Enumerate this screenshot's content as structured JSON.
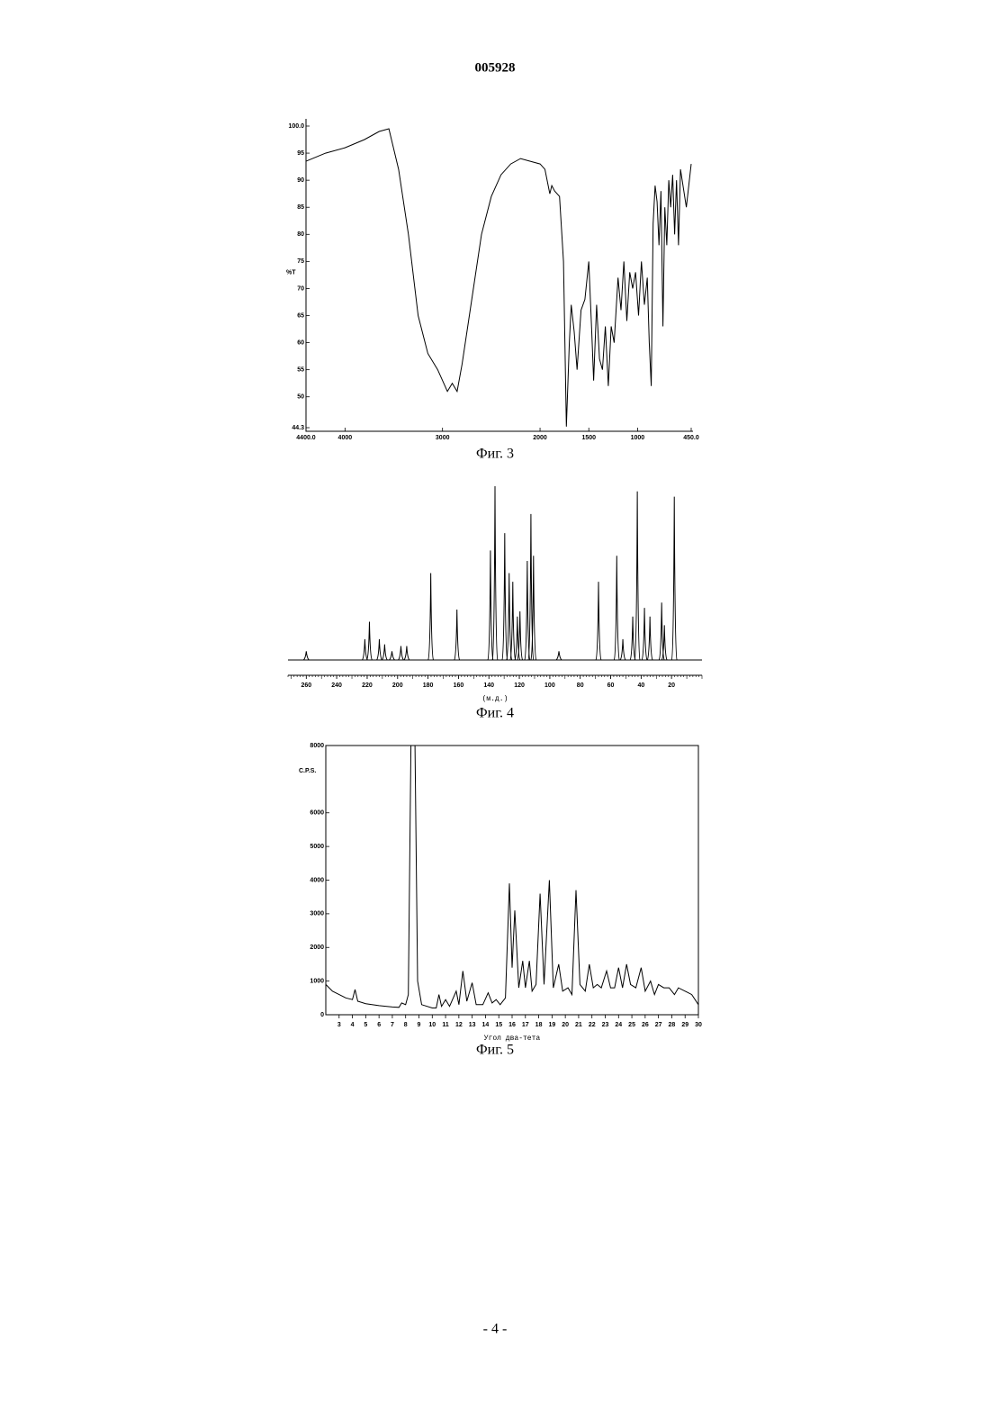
{
  "header": "005928",
  "footer": "- 4 -",
  "chart_data": [
    {
      "type": "line",
      "caption": "Фиг. 3",
      "ylabel": "%T",
      "color": "#000000",
      "xlim": [
        4400,
        450
      ],
      "xticks": [
        {
          "value": 4400,
          "label": "4400.0"
        },
        4000,
        3000,
        2000,
        1500,
        1000,
        {
          "value": 450,
          "label": "450.0"
        }
      ],
      "ylim": [
        44.3,
        100
      ],
      "yticks": [
        {
          "value": 100,
          "label": "100.0"
        },
        95,
        90,
        85,
        80,
        75,
        70,
        65,
        60,
        55,
        50,
        {
          "value": 44.3,
          "label": "44.3"
        }
      ],
      "x": [
        4400,
        4200,
        4000,
        3800,
        3650,
        3550,
        3450,
        3350,
        3250,
        3150,
        3050,
        2950,
        2900,
        2850,
        2800,
        2700,
        2600,
        2500,
        2400,
        2300,
        2200,
        2100,
        2000,
        1950,
        1900,
        1880,
        1850,
        1800,
        1760,
        1730,
        1700,
        1680,
        1650,
        1620,
        1580,
        1540,
        1500,
        1470,
        1450,
        1420,
        1390,
        1360,
        1330,
        1300,
        1270,
        1240,
        1200,
        1170,
        1140,
        1110,
        1080,
        1050,
        1020,
        990,
        960,
        930,
        900,
        880,
        860,
        840,
        820,
        800,
        780,
        760,
        740,
        720,
        700,
        680,
        660,
        640,
        620,
        600,
        580,
        560,
        500,
        450
      ],
      "values": [
        93.5,
        95,
        96,
        97.5,
        99,
        99.5,
        92,
        80,
        65,
        58,
        55,
        51,
        52.5,
        51,
        56,
        68,
        80,
        87,
        91,
        93,
        94,
        93.5,
        93,
        92,
        87.5,
        89,
        88,
        87,
        75,
        44.5,
        60,
        67,
        62,
        55,
        66,
        68,
        75,
        62,
        53,
        67,
        57,
        55,
        63,
        52,
        63,
        60,
        72,
        66,
        75,
        64,
        73,
        70,
        73,
        65,
        75,
        67,
        72,
        60,
        52,
        82,
        89,
        86,
        78,
        88,
        63,
        85,
        78,
        90,
        85,
        91,
        80,
        90,
        78,
        92,
        85,
        93
      ]
    },
    {
      "type": "spectrum",
      "caption": "Фиг. 4",
      "xlabel": "(м.д.)",
      "color": "#000000",
      "xlim": [
        272,
        0
      ],
      "xticks": [
        260,
        240,
        220,
        200,
        180,
        160,
        140,
        120,
        100,
        80,
        60,
        40,
        20
      ],
      "ylim": [
        0,
        100
      ],
      "x": [
        260,
        221.5,
        218.5,
        212,
        208.5,
        203.7,
        197.8,
        194,
        178.2,
        161,
        139,
        136,
        129.6,
        126.7,
        124.3,
        121.3,
        119.6,
        114.8,
        112.4,
        110.7,
        94,
        68,
        56,
        52,
        45.5,
        42.5,
        37.8,
        34.2,
        26.5,
        24.7,
        18.2
      ],
      "values": [
        5,
        12,
        22,
        12,
        9,
        5,
        8,
        8,
        50,
        29,
        63,
        100,
        73,
        50,
        45,
        25,
        28,
        57,
        84,
        60,
        5,
        45,
        60,
        12,
        25,
        97,
        30,
        25,
        33,
        20,
        94
      ]
    },
    {
      "type": "line",
      "caption": "Фиг. 5",
      "xlabel": "Угол два-тета",
      "ylabel": "C.P.S.",
      "color": "#000000",
      "xlim": [
        2,
        30
      ],
      "xticks": [
        3,
        4,
        5,
        6,
        7,
        8,
        9,
        10,
        11,
        12,
        13,
        14,
        15,
        16,
        17,
        18,
        19,
        20,
        21,
        22,
        23,
        24,
        25,
        26,
        27,
        28,
        29,
        30
      ],
      "ylim": [
        0,
        8000
      ],
      "yticks": [
        0,
        1000,
        2000,
        3000,
        4000,
        5000,
        6000,
        8000
      ],
      "x": [
        2,
        2.5,
        3,
        3.5,
        4,
        4.2,
        4.4,
        5,
        6,
        7,
        7.5,
        7.7,
        8,
        8.2,
        8.4,
        8.7,
        8.9,
        9.2,
        10,
        10.3,
        10.5,
        10.7,
        11,
        11.3,
        11.8,
        12,
        12.3,
        12.6,
        13,
        13.3,
        13.8,
        14.2,
        14.5,
        14.8,
        15.1,
        15.5,
        15.8,
        16,
        16.2,
        16.5,
        16.8,
        17,
        17.3,
        17.5,
        17.8,
        18.1,
        18.4,
        18.8,
        19.1,
        19.5,
        19.8,
        20.2,
        20.5,
        20.8,
        21.1,
        21.5,
        21.8,
        22.1,
        22.4,
        22.7,
        23.1,
        23.4,
        23.7,
        24,
        24.3,
        24.6,
        24.9,
        25.3,
        25.7,
        26,
        26.4,
        26.7,
        27,
        27.4,
        27.8,
        28.2,
        28.5,
        29,
        29.5,
        30
      ],
      "values": [
        900,
        700,
        600,
        500,
        450,
        750,
        400,
        330,
        270,
        230,
        220,
        350,
        300,
        600,
        8000,
        8000,
        1000,
        300,
        200,
        200,
        600,
        250,
        450,
        250,
        700,
        300,
        1300,
        400,
        950,
        300,
        300,
        650,
        350,
        450,
        300,
        500,
        3900,
        1400,
        3100,
        800,
        1600,
        800,
        1600,
        700,
        900,
        3600,
        900,
        4000,
        800,
        1500,
        700,
        800,
        600,
        3700,
        900,
        700,
        1500,
        800,
        900,
        800,
        1300,
        800,
        800,
        1400,
        800,
        1500,
        900,
        800,
        1400,
        700,
        1000,
        600,
        900,
        800,
        800,
        600,
        800,
        700,
        600,
        300
      ]
    }
  ]
}
